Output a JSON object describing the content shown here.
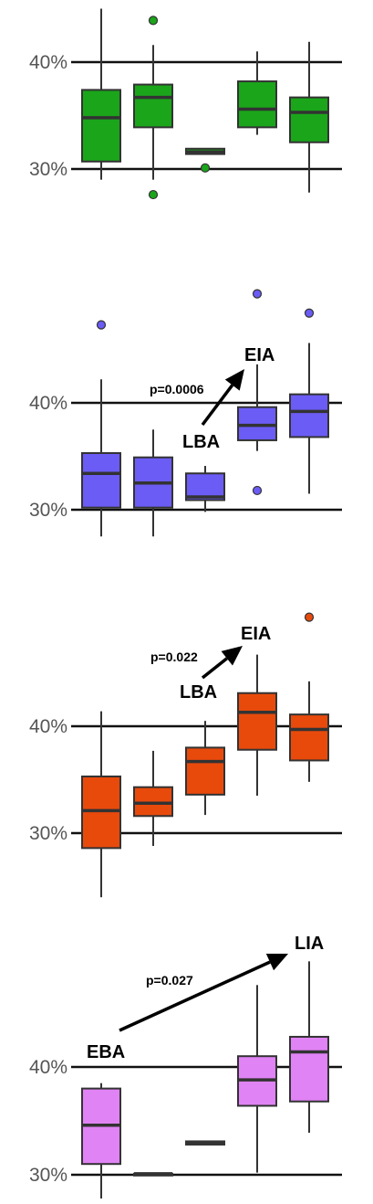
{
  "chart_data": [
    {
      "type": "box",
      "color": "#1aa51a",
      "ytick_labels": [
        "30%",
        "40%"
      ],
      "yticks": [
        30,
        40
      ],
      "ylim": [
        28.3,
        44.3
      ],
      "boxes": [
        {
          "whislo": 29.0,
          "q1": 30.7,
          "med": 34.8,
          "q3": 37.4,
          "whishi": 45.0,
          "fliers": []
        },
        {
          "whislo": 29.0,
          "q1": 33.9,
          "med": 36.7,
          "q3": 37.9,
          "whishi": 41.6,
          "fliers": [
            43.9,
            27.6
          ]
        },
        {
          "whislo": 31.4,
          "q1": 31.4,
          "med": 31.6,
          "q3": 31.9,
          "whishi": 31.9,
          "fliers": [
            30.1
          ]
        },
        {
          "whislo": 33.2,
          "q1": 33.9,
          "med": 35.6,
          "q3": 38.2,
          "whishi": 41.0,
          "fliers": []
        },
        {
          "whislo": 27.8,
          "q1": 32.5,
          "med": 35.3,
          "q3": 36.7,
          "whishi": 41.9,
          "fliers": []
        }
      ],
      "annotation": null
    },
    {
      "type": "box",
      "color": "#6b5cf5",
      "ytick_labels": [
        "30%",
        "40%"
      ],
      "yticks": [
        30,
        40
      ],
      "ylim": [
        27.5,
        49.7
      ],
      "boxes": [
        {
          "whislo": 27.5,
          "q1": 30.2,
          "med": 33.4,
          "q3": 35.3,
          "whishi": 42.2,
          "fliers": [
            47.3
          ]
        },
        {
          "whislo": 27.5,
          "q1": 30.2,
          "med": 32.5,
          "q3": 34.9,
          "whishi": 37.5,
          "fliers": []
        },
        {
          "whislo": 29.8,
          "q1": 30.9,
          "med": 31.2,
          "q3": 33.4,
          "whishi": 34.1,
          "fliers": []
        },
        {
          "whislo": 35.5,
          "q1": 36.5,
          "med": 37.9,
          "q3": 39.6,
          "whishi": 43.6,
          "fliers": [
            50.2,
            31.8
          ]
        },
        {
          "whislo": 31.5,
          "q1": 36.8,
          "med": 39.2,
          "q3": 40.8,
          "whishi": 45.6,
          "fliers": [
            48.4
          ]
        }
      ],
      "annotation": {
        "from": "LBA",
        "to": "EIA",
        "p": "p=0.0006"
      }
    },
    {
      "type": "box",
      "color": "#e84a0c",
      "ytick_labels": [
        "30%",
        "40%"
      ],
      "yticks": [
        30,
        40
      ],
      "ylim": [
        24.0,
        50.0
      ],
      "boxes": [
        {
          "whislo": 24.0,
          "q1": 28.6,
          "med": 32.1,
          "q3": 35.3,
          "whishi": 41.4,
          "fliers": []
        },
        {
          "whislo": 28.8,
          "q1": 31.6,
          "med": 32.8,
          "q3": 34.3,
          "whishi": 37.7,
          "fliers": []
        },
        {
          "whislo": 31.7,
          "q1": 33.6,
          "med": 36.7,
          "q3": 38.0,
          "whishi": 40.5,
          "fliers": []
        },
        {
          "whislo": 33.5,
          "q1": 37.8,
          "med": 41.3,
          "q3": 43.1,
          "whishi": 46.7,
          "fliers": []
        },
        {
          "whislo": 34.8,
          "q1": 36.8,
          "med": 39.7,
          "q3": 41.1,
          "whishi": 44.2,
          "fliers": [
            50.2
          ]
        }
      ],
      "annotation": {
        "from": "LBA",
        "to": "EIA",
        "p": "p=0.022"
      }
    },
    {
      "type": "box",
      "color": "#e083f5",
      "ytick_labels": [
        "30%",
        "40%"
      ],
      "yticks": [
        30,
        40
      ],
      "ylim": [
        27.8,
        49.8
      ],
      "boxes": [
        {
          "whislo": 27.8,
          "q1": 31.0,
          "med": 34.6,
          "q3": 38.0,
          "whishi": 38.5,
          "fliers": []
        },
        {
          "whislo": 30.1,
          "q1": 30.1,
          "med": 30.1,
          "q3": 30.1,
          "whishi": 30.1,
          "fliers": []
        },
        {
          "whislo": 32.8,
          "q1": 32.8,
          "med": 32.9,
          "q3": 33.1,
          "whishi": 33.1,
          "fliers": []
        },
        {
          "whislo": 30.2,
          "q1": 36.4,
          "med": 38.8,
          "q3": 41.0,
          "whishi": 47.6,
          "fliers": []
        },
        {
          "whislo": 33.9,
          "q1": 36.8,
          "med": 41.4,
          "q3": 42.8,
          "whishi": 49.8,
          "fliers": []
        }
      ],
      "annotation": {
        "from": "EBA",
        "to": "LIA",
        "p": "p=0.027"
      }
    }
  ]
}
